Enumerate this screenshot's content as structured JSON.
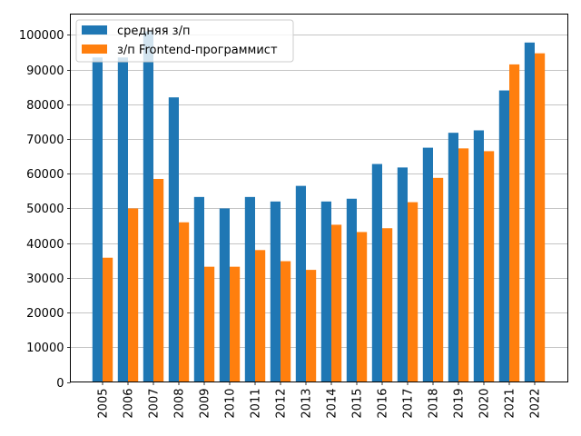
{
  "chart_data": {
    "type": "bar",
    "categories": [
      "2005",
      "2006",
      "2007",
      "2008",
      "2009",
      "2010",
      "2011",
      "2012",
      "2013",
      "2014",
      "2015",
      "2016",
      "2017",
      "2018",
      "2019",
      "2020",
      "2021",
      "2022"
    ],
    "series": [
      {
        "name": "средняя з/п",
        "color": "#1f77b4",
        "values": [
          93500,
          93500,
          101000,
          82000,
          53300,
          50000,
          53300,
          52000,
          56500,
          52000,
          52800,
          62800,
          61800,
          67500,
          71800,
          72500,
          84000,
          97800
        ]
      },
      {
        "name": "з/п Frontend-программист",
        "color": "#ff7f0e",
        "values": [
          35800,
          50000,
          58500,
          46000,
          33200,
          33200,
          38000,
          34800,
          32300,
          45300,
          43200,
          44300,
          51800,
          58800,
          67300,
          66500,
          91500,
          94700
        ]
      }
    ],
    "yticks": [
      0,
      10000,
      20000,
      30000,
      40000,
      50000,
      60000,
      70000,
      80000,
      90000,
      100000
    ],
    "ylim": [
      0,
      106000
    ],
    "grid": "y",
    "legend_position": "top-left",
    "title": "",
    "xlabel": "",
    "ylabel": ""
  }
}
